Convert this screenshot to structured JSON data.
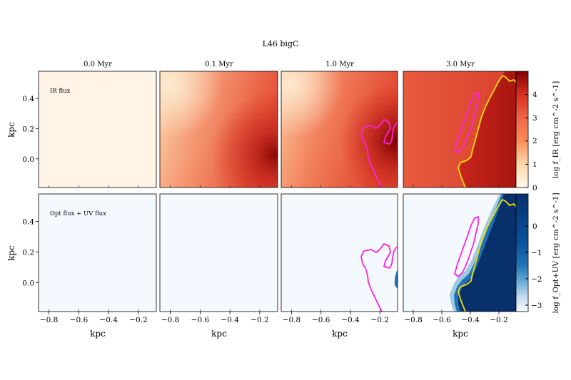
{
  "figure": {
    "suptitle": "L46 bigC",
    "panel_titles": [
      "0.0 Myr",
      "0.1 Myr",
      "1.0 Myr",
      "3.0 Myr"
    ],
    "row_annotations": [
      "IR flux",
      "Opt flux + UV flux"
    ],
    "xlabel": "kpc",
    "ylabel": "kpc",
    "colorbar_labels": [
      "log f_IR [erg cm^-2 s^-1]",
      "log f_Opt+UV [erg cm^-2 s^-1]"
    ],
    "colors": {
      "contour_magenta": "#ff22e0",
      "contour_yellow": "#f2df00",
      "ir_low": "#fff5e8",
      "ir_high": "#7b0000",
      "uv_low": "#f6faff",
      "uv_high": "#08306b"
    }
  },
  "chart_data": {
    "type": "heatmap",
    "layout": "2 rows x 4 columns image grid",
    "x_ticks": [
      "−0.8",
      "−0.6",
      "−0.4",
      "−0.2"
    ],
    "y_ticks": [
      "0.4",
      "0.2",
      "0.0"
    ],
    "xlim": [
      -0.87,
      -0.08
    ],
    "ylim": [
      -0.19,
      0.58
    ],
    "colorbars": [
      {
        "row": "IR flux",
        "range": [
          0,
          5
        ],
        "ticks": [
          "0",
          "1",
          "2",
          "3",
          "4"
        ],
        "cmap": "OrRd"
      },
      {
        "row": "Opt flux + UV flux",
        "range": [
          -3.3,
          1.2
        ],
        "ticks": [
          "−3",
          "−2",
          "−1",
          "0"
        ],
        "cmap": "Blues"
      }
    ],
    "panels_time_myr": [
      0.0,
      0.1,
      1.0,
      3.0
    ],
    "contours": [
      {
        "color": "magenta",
        "present_in": [
          "1.0 Myr",
          "3.0 Myr"
        ]
      },
      {
        "color": "yellow",
        "present_in": [
          "3.0 Myr"
        ]
      }
    ]
  }
}
